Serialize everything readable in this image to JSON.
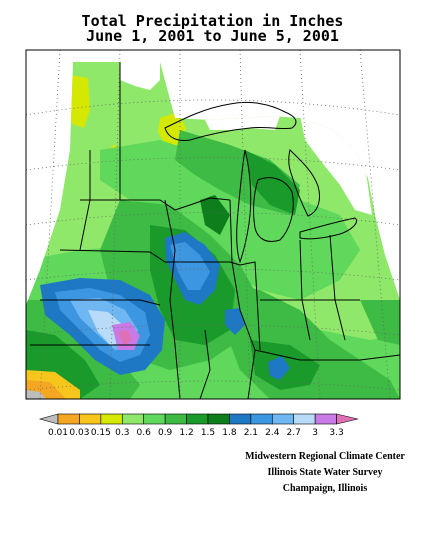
{
  "title": {
    "line1": "Total Precipitation in Inches",
    "line2": "June 1, 2001  to June 5, 2001"
  },
  "legend": {
    "units": "inches",
    "bins": [
      {
        "label": "0.01",
        "color": "#f5a623"
      },
      {
        "label": "0.03",
        "color": "#f6c61c"
      },
      {
        "label": "0.15",
        "color": "#d4e800"
      },
      {
        "label": "0.3",
        "color": "#8fe86a"
      },
      {
        "label": "0.6",
        "color": "#5fd85b"
      },
      {
        "label": "0.9",
        "color": "#3dbb44"
      },
      {
        "label": "1.2",
        "color": "#1a9a2a"
      },
      {
        "label": "1.5",
        "color": "#0e7d1c"
      },
      {
        "label": "1.8",
        "color": "#1f78c4"
      },
      {
        "label": "2.1",
        "color": "#3d96e0"
      },
      {
        "label": "2.4",
        "color": "#6fb7f2"
      },
      {
        "label": "2.7",
        "color": "#b8dcf8"
      },
      {
        "label": "3",
        "color": "#c87ae6"
      },
      {
        "label": "3.3",
        "color": "#e070b4"
      }
    ],
    "below_color": "#bdbdbd"
  },
  "credits": {
    "line1": "Midwestern Regional Climate Center",
    "line2": "Illinois State Water Survey",
    "line3": "Champaign, Illinois"
  }
}
